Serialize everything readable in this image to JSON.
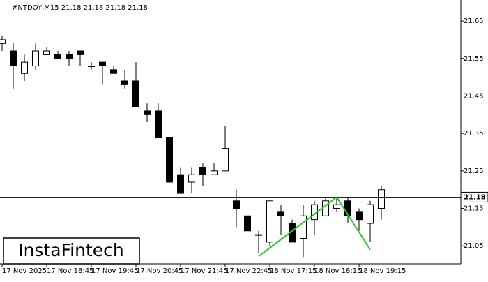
{
  "chart_data": {
    "type": "candlestick",
    "title": "#NTDOY,M15  21.18 21.18 21.18 21.18",
    "brand": "InstaFintech",
    "categories": [
      "17 Nov 2025",
      null,
      null,
      null,
      "17 Nov 18:45",
      null,
      null,
      null,
      "17 Nov 19:45",
      null,
      null,
      null,
      "17 Nov 20:45",
      null,
      null,
      null,
      "17 Nov 21:45",
      null,
      null,
      null,
      "17 Nov 22:45",
      null,
      null,
      null,
      "18 Nov 17:15",
      null,
      null,
      null,
      "18 Nov 18:15",
      null,
      null,
      null,
      "18 Nov 19:15",
      null,
      null
    ],
    "open": [
      21.59,
      21.57,
      21.51,
      21.53,
      21.56,
      21.56,
      21.56,
      21.57,
      21.53,
      21.54,
      21.52,
      21.49,
      21.49,
      21.41,
      21.41,
      21.34,
      21.24,
      21.22,
      21.26,
      21.24,
      21.25,
      21.17,
      21.13,
      21.08,
      21.06,
      21.14,
      21.11,
      21.07,
      21.12,
      21.13,
      21.15,
      21.17,
      21.14,
      21.11,
      21.15
    ],
    "high": [
      21.61,
      21.59,
      21.56,
      21.59,
      21.58,
      21.57,
      21.57,
      21.57,
      21.54,
      21.54,
      21.53,
      21.52,
      21.54,
      21.43,
      21.43,
      21.34,
      21.26,
      21.26,
      21.27,
      21.27,
      21.37,
      21.2,
      21.13,
      21.09,
      21.17,
      21.16,
      21.12,
      21.16,
      21.17,
      21.18,
      21.18,
      21.18,
      21.15,
      21.17,
      21.21
    ],
    "low": [
      21.57,
      21.47,
      21.49,
      21.52,
      21.56,
      21.55,
      21.53,
      21.53,
      21.52,
      21.48,
      21.51,
      21.47,
      21.42,
      21.38,
      21.34,
      21.22,
      21.19,
      21.19,
      21.21,
      21.24,
      21.25,
      21.1,
      21.09,
      21.03,
      21.05,
      21.08,
      21.06,
      21.02,
      21.08,
      21.13,
      21.14,
      21.11,
      21.09,
      21.06,
      21.12
    ],
    "close": [
      21.6,
      21.53,
      21.54,
      21.57,
      21.57,
      21.55,
      21.55,
      21.56,
      21.53,
      21.53,
      21.51,
      21.48,
      21.42,
      21.4,
      21.34,
      21.22,
      21.19,
      21.24,
      21.24,
      21.25,
      21.31,
      21.15,
      21.09,
      21.08,
      21.17,
      21.13,
      21.06,
      21.13,
      21.16,
      21.17,
      21.16,
      21.13,
      21.12,
      21.16,
      21.2
    ],
    "current_price": 21.18,
    "pattern": {
      "color": "#22cc22",
      "x": [
        23,
        30,
        33
      ],
      "values": [
        21.022,
        21.18,
        21.04
      ]
    },
    "ylim": [
      21.002,
      21.706
    ],
    "yticks": [
      21.65,
      21.55,
      21.45,
      21.35,
      21.25,
      21.15,
      21.05
    ]
  }
}
